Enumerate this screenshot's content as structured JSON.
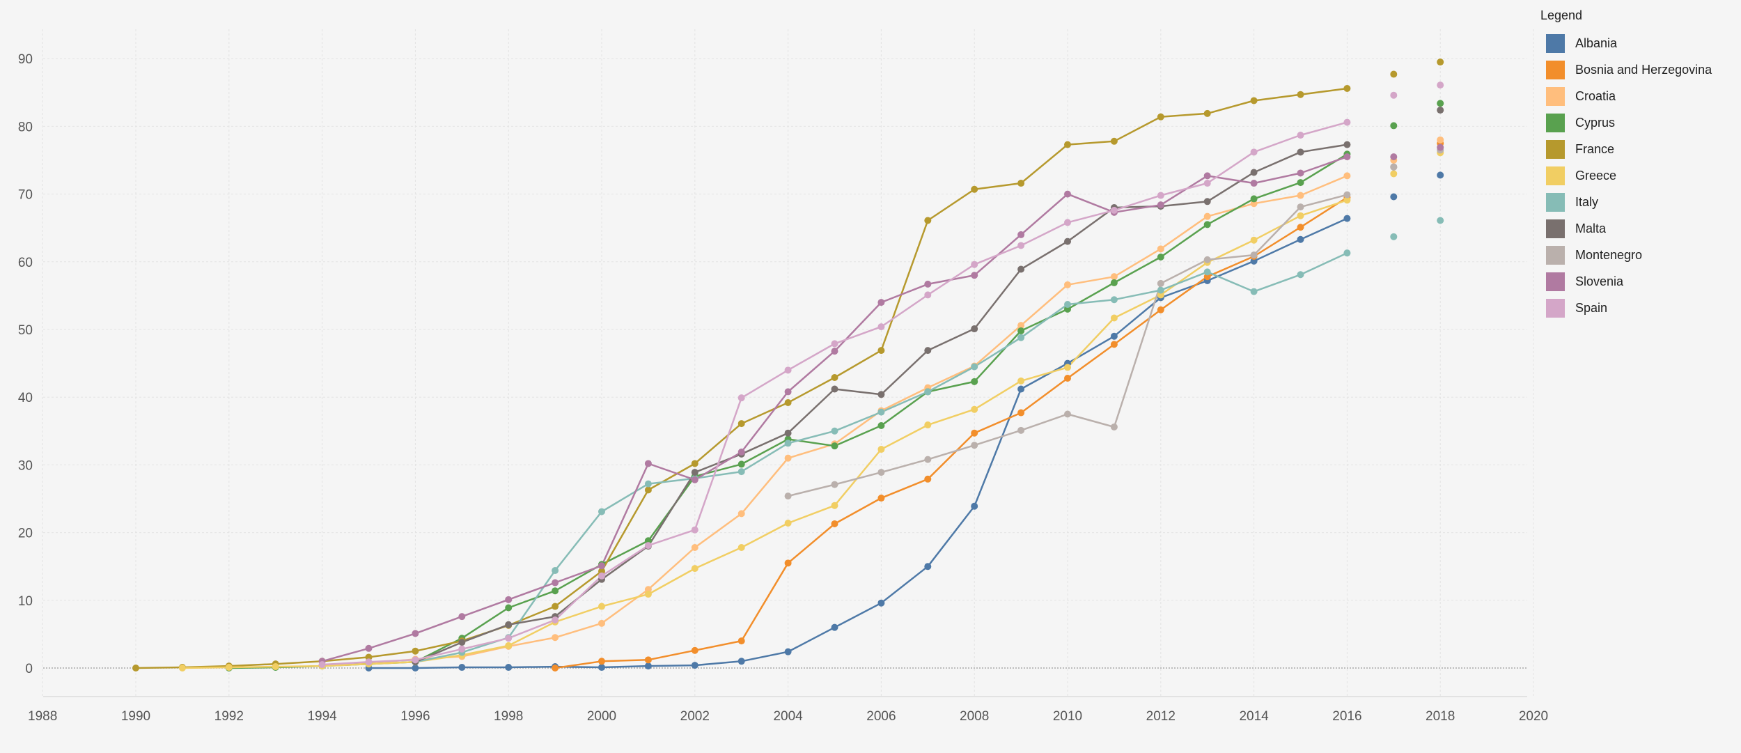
{
  "chart_data": {
    "type": "line",
    "title": "",
    "xlabel": "",
    "ylabel": "",
    "xlim": [
      1988,
      2020
    ],
    "ylim": [
      -5,
      95
    ],
    "x_ticks": [
      1988,
      1990,
      1992,
      1994,
      1996,
      1998,
      2000,
      2002,
      2004,
      2006,
      2008,
      2010,
      2012,
      2014,
      2016,
      2018,
      2020
    ],
    "y_ticks": [
      0,
      10,
      20,
      30,
      40,
      50,
      60,
      70,
      80,
      90
    ],
    "legend_title": "Legend",
    "legend_position": "right",
    "series": [
      {
        "name": "Albania",
        "color": "#4e79a7",
        "x": [
          1995,
          1996,
          1997,
          1998,
          1999,
          2000,
          2001,
          2002,
          2003,
          2004,
          2005,
          2006,
          2007,
          2008,
          2009,
          2010,
          2011,
          2012,
          2013,
          2014,
          2015,
          2016
        ],
        "y": [
          0,
          0,
          0.1,
          0.1,
          0.2,
          0.1,
          0.3,
          0.4,
          1,
          2.4,
          6,
          9.6,
          15,
          23.9,
          41.2,
          45,
          49,
          54.7,
          57.2,
          60.1,
          63.3,
          66.4
        ],
        "extra_points": [
          [
            2017,
            69.6
          ],
          [
            2018,
            72.8
          ]
        ]
      },
      {
        "name": "Bosnia and Herzegovina",
        "color": "#f28e2b",
        "x": [
          1999,
          2000,
          2001,
          2002,
          2003,
          2004,
          2005,
          2006,
          2007,
          2008,
          2009,
          2010,
          2011,
          2012,
          2013,
          2014,
          2015,
          2016
        ],
        "y": [
          0,
          1,
          1.2,
          2.6,
          4,
          15.5,
          21.3,
          25.1,
          27.9,
          34.7,
          37.7,
          42.8,
          47.8,
          52.9,
          57.8,
          60.8,
          65.1,
          69.5
        ],
        "extra_points": [
          [
            2018,
            77.5
          ]
        ]
      },
      {
        "name": "Croatia",
        "color": "#ffbe7d",
        "x": [
          1994,
          1995,
          1996,
          1997,
          1998,
          1999,
          2000,
          2001,
          2002,
          2003,
          2004,
          2005,
          2006,
          2007,
          2008,
          2009,
          2010,
          2011,
          2012,
          2013,
          2014,
          2015,
          2016
        ],
        "y": [
          0.5,
          0.7,
          1.3,
          1.7,
          3.2,
          4.5,
          6.6,
          11.6,
          17.8,
          22.8,
          31,
          33.1,
          38,
          41.4,
          44.6,
          50.6,
          56.6,
          57.8,
          61.9,
          66.7,
          68.6,
          69.8,
          72.7
        ],
        "extra_points": [
          [
            2017,
            75
          ],
          [
            2018,
            78
          ]
        ]
      },
      {
        "name": "Cyprus",
        "color": "#59a14f",
        "x": [
          1992,
          1993,
          1994,
          1995,
          1996,
          1997,
          1998,
          1999,
          2000,
          2001,
          2002,
          2003,
          2004,
          2005,
          2006,
          2007,
          2008,
          2009,
          2010,
          2011,
          2012,
          2013,
          2014,
          2015,
          2016
        ],
        "y": [
          0,
          0.1,
          0.3,
          0.6,
          0.9,
          4.4,
          8.9,
          11.4,
          15.3,
          18.8,
          28.3,
          30.1,
          33.8,
          32.8,
          35.8,
          40.8,
          42.3,
          49.8,
          53,
          56.9,
          60.7,
          65.5,
          69.3,
          71.7,
          75.9
        ],
        "extra_points": [
          [
            2017,
            80.1
          ],
          [
            2018,
            83.4
          ]
        ]
      },
      {
        "name": "France",
        "color": "#b6992d",
        "x": [
          1990,
          1991,
          1992,
          1993,
          1994,
          1995,
          1996,
          1997,
          1998,
          1999,
          2000,
          2001,
          2002,
          2003,
          2004,
          2005,
          2006,
          2007,
          2008,
          2009,
          2010,
          2011,
          2012,
          2013,
          2014,
          2015,
          2016
        ],
        "y": [
          0,
          0.1,
          0.3,
          0.6,
          1,
          1.6,
          2.5,
          4,
          6.3,
          9.1,
          14.3,
          26.3,
          30.2,
          36.1,
          39.2,
          42.9,
          46.9,
          66.1,
          70.7,
          71.6,
          77.3,
          77.8,
          81.4,
          81.9,
          83.8,
          84.7,
          85.6
        ],
        "extra_points": [
          [
            2017,
            87.7
          ],
          [
            2018,
            89.5
          ]
        ]
      },
      {
        "name": "Greece",
        "color": "#f1ce63",
        "x": [
          1991,
          1992,
          1993,
          1994,
          1995,
          1996,
          1997,
          1998,
          1999,
          2000,
          2001,
          2002,
          2003,
          2004,
          2005,
          2006,
          2007,
          2008,
          2009,
          2010,
          2011,
          2012,
          2013,
          2014,
          2015,
          2016
        ],
        "y": [
          0,
          0.1,
          0.2,
          0.3,
          0.6,
          0.9,
          1.9,
          3.3,
          6.8,
          9.1,
          10.9,
          14.7,
          17.8,
          21.4,
          24,
          32.3,
          35.9,
          38.2,
          42.4,
          44.4,
          51.7,
          55.1,
          59.9,
          63.2,
          66.8,
          69.1
        ],
        "extra_points": [
          [
            2017,
            73
          ],
          [
            2018,
            76.1
          ]
        ]
      },
      {
        "name": "Italy",
        "color": "#86bcb6",
        "x": [
          1996,
          1997,
          1998,
          1999,
          2000,
          2001,
          2002,
          2003,
          2004,
          2005,
          2006,
          2007,
          2008,
          2009,
          2010,
          2011,
          2012,
          2013,
          2014,
          2015,
          2016
        ],
        "y": [
          0.9,
          2.3,
          4.5,
          14.4,
          23.1,
          27.2,
          28,
          29,
          33.2,
          35,
          37.8,
          40.8,
          44.5,
          48.8,
          53.7,
          54.4,
          55.8,
          58.5,
          55.6,
          58.1,
          61.3
        ],
        "extra_points": [
          [
            2017,
            63.7
          ],
          [
            2018,
            66.1
          ]
        ]
      },
      {
        "name": "Malta",
        "color": "#79706e",
        "x": [
          1996,
          1997,
          1998,
          1999,
          2000,
          2001,
          2002,
          2003,
          2004,
          2005,
          2006,
          2007,
          2008,
          2009,
          2010,
          2011,
          2012,
          2013,
          2014,
          2015,
          2016
        ],
        "y": [
          0.9,
          3.8,
          6.4,
          7.6,
          13.1,
          18,
          28.9,
          31.6,
          34.7,
          41.2,
          40.4,
          46.9,
          50.1,
          58.9,
          63,
          68,
          68.2,
          68.9,
          73.2,
          76.2,
          77.3
        ],
        "extra_points": [
          [
            2017,
            74
          ],
          [
            2018,
            82.4
          ]
        ]
      },
      {
        "name": "Montenegro",
        "color": "#bab0ac",
        "x": [
          2004,
          2005,
          2006,
          2007,
          2008,
          2009,
          2010,
          2011,
          2012,
          2013,
          2014,
          2015,
          2016
        ],
        "y": [
          25.4,
          27.1,
          28.9,
          30.8,
          32.9,
          35.1,
          37.5,
          35.6,
          56.8,
          60.3,
          61,
          68.1,
          69.9
        ],
        "extra_points": [
          [
            2017,
            74
          ],
          [
            2018,
            76.5
          ]
        ]
      },
      {
        "name": "Slovenia",
        "color": "#b07aa1",
        "x": [
          1994,
          1995,
          1996,
          1997,
          1998,
          1999,
          2000,
          2001,
          2002,
          2003,
          2004,
          2005,
          2006,
          2007,
          2008,
          2009,
          2010,
          2011,
          2012,
          2013,
          2014,
          2015,
          2016
        ],
        "y": [
          1,
          2.9,
          5.1,
          7.6,
          10.1,
          12.6,
          15.1,
          30.2,
          27.8,
          31.9,
          40.8,
          46.8,
          54,
          56.7,
          58,
          64,
          70,
          67.3,
          68.4,
          72.7,
          71.6,
          73.1,
          75.5
        ],
        "extra_points": [
          [
            2017,
            75.5
          ],
          [
            2018,
            76.9
          ]
        ]
      },
      {
        "name": "Spain",
        "color": "#d4a6c8",
        "x": [
          1994,
          1995,
          1996,
          1997,
          1998,
          1999,
          2000,
          2001,
          2002,
          2003,
          2004,
          2005,
          2006,
          2007,
          2008,
          2009,
          2010,
          2011,
          2012,
          2013,
          2014,
          2015,
          2016
        ],
        "y": [
          0.5,
          0.9,
          1.2,
          2.8,
          4.4,
          7.1,
          13.6,
          18.1,
          20.4,
          39.9,
          44,
          47.9,
          50.4,
          55.1,
          59.6,
          62.4,
          65.8,
          67.6,
          69.8,
          71.6,
          76.2,
          78.7,
          80.6
        ],
        "extra_points": [
          [
            2017,
            84.6
          ],
          [
            2018,
            86.1
          ]
        ]
      }
    ]
  }
}
